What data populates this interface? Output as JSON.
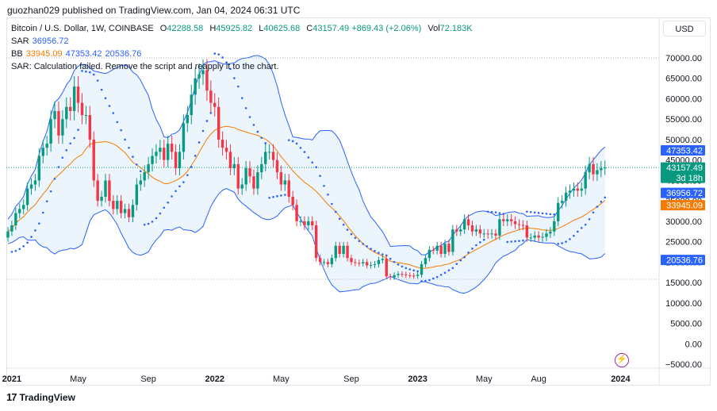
{
  "publisher_line": "guozhan029 published on TradingView.com, Jan 04, 2024 06:31 UTC",
  "currency": "USD",
  "footer_brand": "TradingView",
  "legend": {
    "symbol": "Bitcoin / U.S. Dollar, 1W, COINBASE",
    "ohlc": {
      "o_label": "O",
      "o": "42288.58",
      "h_label": "H",
      "h": "45925.82",
      "l_label": "L",
      "l": "40625.68",
      "c_label": "C",
      "c": "43157.49",
      "change": "+869.43 (+2.06%)",
      "vol_label": "Vol",
      "vol": "72.183K"
    },
    "sar": {
      "label": "SAR",
      "value": "36956.72"
    },
    "bb": {
      "label": "BB",
      "basis": "33945.09",
      "upper": "47353.42",
      "lower": "20536.76"
    },
    "error": "SAR: Calculation failed. Remove the script and reapply it to the chart."
  },
  "countdown": "3d 18h",
  "colors": {
    "up": "#089981",
    "down": "#f23645",
    "bb_band": "#2962ff",
    "bb_basis": "#f57c00",
    "sar": "#2962ff",
    "fill": "#e9f2fc"
  },
  "chart_data": {
    "type": "candlestick",
    "symbol": "BTCUSD",
    "interval": "1W",
    "ylim": [
      -5000,
      72000
    ],
    "y_ticks": [
      70000,
      65000,
      60000,
      55000,
      50000,
      45000,
      40000,
      35000,
      30000,
      25000,
      20000,
      15000,
      10000,
      5000,
      0,
      -5000
    ],
    "y_tick_labels": [
      "70000.00",
      "65000.00",
      "60000.00",
      "55000.00",
      "50000.00",
      "45000.00",
      "40000.00",
      "35000.00",
      "30000.00",
      "25000.00",
      "20000.00",
      "15000.00",
      "10000.00",
      "5000.00",
      "0.00",
      "−5000.00"
    ],
    "x_ticks": [
      {
        "label": "2021",
        "bold": true,
        "week": 1
      },
      {
        "label": "May",
        "bold": false,
        "week": 18
      },
      {
        "label": "Sep",
        "bold": false,
        "week": 36
      },
      {
        "label": "2022",
        "bold": true,
        "week": 53
      },
      {
        "label": "May",
        "bold": false,
        "week": 70
      },
      {
        "label": "Sep",
        "bold": false,
        "week": 88
      },
      {
        "label": "2023",
        "bold": true,
        "week": 105
      },
      {
        "label": "May",
        "bold": false,
        "week": 122
      },
      {
        "label": "Aug",
        "bold": false,
        "week": 136
      },
      {
        "label": "2024",
        "bold": true,
        "week": 157
      }
    ],
    "close": [
      27500,
      29000,
      32000,
      33000,
      34000,
      38000,
      39000,
      40000,
      46000,
      48000,
      49000,
      55000,
      57000,
      51000,
      55000,
      58000,
      57000,
      63000,
      59000,
      56000,
      56000,
      50000,
      40000,
      35000,
      36000,
      40000,
      35000,
      33000,
      35000,
      32000,
      33000,
      31000,
      34000,
      39000,
      40000,
      42000,
      44000,
      46000,
      47000,
      48000,
      45000,
      49000,
      47000,
      43000,
      47000,
      54000,
      56000,
      61000,
      65000,
      66000,
      67000,
      62000,
      59000,
      58000,
      50000,
      48000,
      47000,
      43000,
      44000,
      38000,
      39000,
      43000,
      41000,
      38000,
      42000,
      44000,
      47000,
      47000,
      45000,
      42000,
      39000,
      40000,
      36000,
      34000,
      30000,
      30000,
      29000,
      30000,
      29000,
      21000,
      20000,
      20000,
      19500,
      21000,
      24000,
      22000,
      24000,
      21000,
      20000,
      19800,
      19700,
      20000,
      19200,
      19300,
      19500,
      20500,
      20800,
      16500,
      16300,
      16800,
      17100,
      17000,
      16800,
      16700,
      16600,
      16900,
      19500,
      21000,
      23000,
      22800,
      24000,
      22000,
      24500,
      22500,
      28000,
      27500,
      28000,
      30500,
      29000,
      27500,
      28000,
      27000,
      27000,
      26800,
      27000,
      26500,
      30500,
      30000,
      30500,
      30000,
      29300,
      29100,
      29000,
      26000,
      26000,
      26500,
      26000,
      26200,
      27000,
      27500,
      30000,
      34500,
      35000,
      37000,
      37500,
      38000,
      37500,
      38000,
      42000,
      44000,
      41500,
      42500,
      43000,
      43157
    ]
  }
}
